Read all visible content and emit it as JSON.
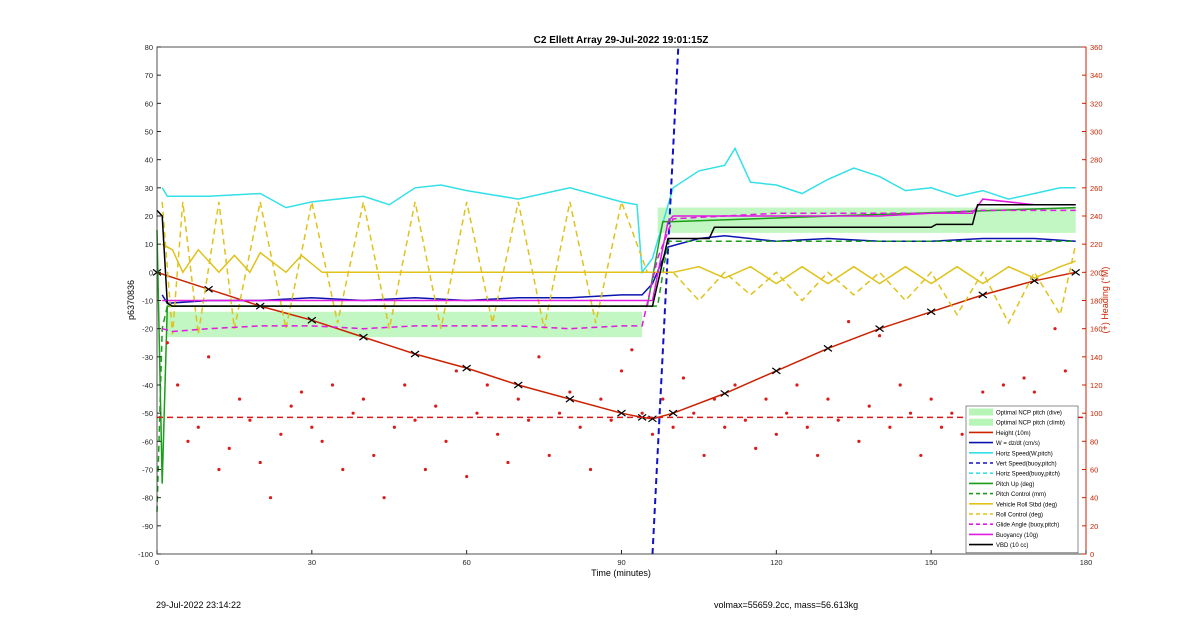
{
  "chart_data": {
    "type": "line",
    "title": "C2 Ellett Array 29-Jul-2022 19:01:15Z",
    "xlabel": "Time (minutes)",
    "ylabel_left": "p6370836",
    "ylabel_right": "(+) Heading (°M)",
    "xlim": [
      0,
      180
    ],
    "ylim_left": [
      -100,
      80
    ],
    "ylim_right": [
      0,
      360
    ],
    "x_ticks": [
      0,
      30,
      60,
      90,
      120,
      150,
      180
    ],
    "y_ticks_left": [
      -100,
      -90,
      -80,
      -70,
      -60,
      -50,
      -40,
      -30,
      -20,
      -10,
      0,
      10,
      20,
      30,
      40,
      50,
      60,
      70,
      80
    ],
    "y_ticks_right": [
      0,
      20,
      40,
      60,
      80,
      100,
      120,
      140,
      160,
      180,
      200,
      220,
      240,
      260,
      280,
      300,
      320,
      340,
      360
    ],
    "grid": false,
    "legend_position": "lower-right",
    "legend": [
      {
        "label": "Optimal NCP pitch (dive)",
        "color": "#b7f5b7",
        "style": "patch"
      },
      {
        "label": "Optimal NCP pitch (climb)",
        "color": "#b7f5b7",
        "style": "patch"
      },
      {
        "label": "Height (10m)",
        "color": "#cc2200",
        "style": "solid-marker"
      },
      {
        "label": "W = dz/dt (cm/s)",
        "color": "#0b14b0",
        "style": "solid"
      },
      {
        "label": "Horiz Speed(W,pitch)",
        "color": "#33e0e8",
        "style": "solid"
      },
      {
        "label": "Vert Speed(buoy,pitch)",
        "color": "#1010c8",
        "style": "dashed"
      },
      {
        "label": "Horiz Speed(buoy,pitch)",
        "color": "#33e0e8",
        "style": "dashed"
      },
      {
        "label": "Pitch Up (deg)",
        "color": "#1a9e1a",
        "style": "solid"
      },
      {
        "label": "Pitch Control (mm)",
        "color": "#1a9e1a",
        "style": "dashed"
      },
      {
        "label": "Vehicle Roll Stbd (deg)",
        "color": "#e0c21a",
        "style": "solid"
      },
      {
        "label": "Roll Control (deg)",
        "color": "#e0c21a",
        "style": "dashed"
      },
      {
        "label": "Glide Angle (buoy,pitch)",
        "color": "#e01ae0",
        "style": "dashed"
      },
      {
        "label": "Buoyancy (10g)",
        "color": "#e01ae0",
        "style": "solid"
      },
      {
        "label": "VBD (10 cc)",
        "color": "#000000",
        "style": "solid"
      }
    ],
    "series": [
      {
        "name": "Height (10m)",
        "axis": "left",
        "x": [
          0,
          10,
          20,
          30,
          40,
          50,
          60,
          70,
          80,
          90,
          94,
          96,
          100,
          110,
          120,
          130,
          140,
          150,
          160,
          170,
          178
        ],
        "y": [
          0,
          -6,
          -12,
          -17,
          -23,
          -29,
          -34,
          -40,
          -45,
          -50,
          -51.5,
          -52,
          -50,
          -43,
          -35,
          -27,
          -20,
          -14,
          -8,
          -3,
          0
        ]
      },
      {
        "name": "W = dz/dt (cm/s)",
        "axis": "left",
        "x": [
          1,
          2,
          10,
          20,
          30,
          40,
          50,
          60,
          70,
          80,
          90,
          94,
          96,
          99,
          105,
          110,
          120,
          130,
          140,
          150,
          160,
          170,
          178
        ],
        "y": [
          -8,
          -11,
          -10,
          -10,
          -9,
          -10,
          -9,
          -10,
          -9,
          -9,
          -8,
          -8,
          -4,
          9,
          12,
          13,
          11,
          12,
          11,
          11,
          12,
          12,
          11
        ]
      },
      {
        "name": "Horiz Speed(W,pitch)",
        "axis": "left",
        "x": [
          1,
          2,
          10,
          20,
          25,
          30,
          40,
          45,
          50,
          55,
          60,
          70,
          80,
          90,
          93,
          94,
          96,
          100,
          105,
          110,
          112,
          115,
          120,
          125,
          130,
          135,
          140,
          145,
          150,
          155,
          160,
          165,
          170,
          175,
          178
        ],
        "y": [
          30,
          27,
          27,
          28,
          23,
          25,
          27,
          24,
          30,
          31,
          29,
          26,
          30,
          25,
          24,
          0,
          5,
          30,
          36,
          38,
          44,
          32,
          31,
          28,
          33,
          37,
          34,
          29,
          30,
          27,
          29,
          26,
          28,
          30,
          30
        ]
      },
      {
        "name": "Vert Speed(buoy,pitch)",
        "axis": "left",
        "x": [
          96,
          101
        ],
        "y": [
          -100,
          80
        ]
      },
      {
        "name": "Pitch Up (deg)",
        "axis": "left",
        "x": [
          0,
          1,
          2,
          3,
          95,
          97,
          98,
          100,
          178
        ],
        "y": [
          15,
          -75,
          -12,
          -12,
          -12,
          8,
          18,
          18,
          23
        ]
      },
      {
        "name": "Pitch Control (mm)",
        "axis": "left",
        "x": [
          0,
          1,
          2,
          97,
          99,
          178
        ],
        "y": [
          -85,
          -20,
          -12,
          -12,
          11,
          11
        ]
      },
      {
        "name": "Vehicle Roll Stbd (deg)",
        "axis": "left",
        "x": [
          1,
          3,
          5,
          8,
          12,
          15,
          18,
          20,
          25,
          28,
          32,
          35,
          40,
          45,
          50,
          55,
          60,
          65,
          70,
          75,
          80,
          85,
          90,
          93,
          95,
          100,
          105,
          110,
          115,
          120,
          125,
          130,
          135,
          140,
          145,
          150,
          155,
          160,
          165,
          170,
          175,
          178
        ],
        "y": [
          10,
          8,
          0,
          8,
          0,
          6,
          0,
          7,
          0,
          6,
          0,
          0,
          0,
          0,
          0,
          0,
          0,
          0,
          0,
          0,
          0,
          0,
          0,
          0,
          0,
          0,
          2,
          -2,
          2,
          -4,
          2,
          -4,
          2,
          -4,
          2,
          -4,
          2,
          -4,
          2,
          -2,
          2,
          4
        ]
      },
      {
        "name": "Roll Control (deg)",
        "axis": "left",
        "x": [
          1,
          3,
          5,
          8,
          12,
          15,
          20,
          25,
          30,
          35,
          40,
          45,
          50,
          55,
          60,
          65,
          70,
          75,
          80,
          85,
          90,
          95,
          100,
          105,
          110,
          115,
          120,
          125,
          130,
          135,
          140,
          145,
          150,
          155,
          160,
          165,
          170,
          175,
          178
        ],
        "y": [
          25,
          -22,
          25,
          -22,
          25,
          -20,
          25,
          -20,
          25,
          -18,
          25,
          -20,
          25,
          -20,
          25,
          -18,
          25,
          -20,
          25,
          -18,
          25,
          0,
          0,
          -10,
          0,
          -8,
          0,
          -10,
          0,
          -8,
          0,
          -10,
          0,
          -15,
          0,
          -18,
          0,
          -15,
          10
        ]
      },
      {
        "name": "Glide Angle (buoy,pitch)",
        "axis": "left",
        "x": [
          1,
          3,
          10,
          20,
          30,
          40,
          50,
          60,
          70,
          80,
          90,
          94,
          97,
          100,
          110,
          120,
          130,
          140,
          150,
          160,
          170,
          178
        ],
        "y": [
          -20,
          -21,
          -20,
          -19,
          -19,
          -20,
          -19,
          -19,
          -19,
          -20,
          -19,
          -19,
          5,
          19,
          20,
          21,
          21,
          21,
          21,
          22,
          22,
          22
        ]
      },
      {
        "name": "Buoyancy (10g)",
        "axis": "left",
        "x": [
          1,
          3,
          94,
          96,
          99,
          100,
          110,
          120,
          130,
          140,
          150,
          158,
          160,
          170,
          178
        ],
        "y": [
          -10,
          -10,
          -10,
          -10,
          18,
          20,
          20,
          20,
          20,
          20,
          21,
          21,
          26,
          24,
          24
        ]
      },
      {
        "name": "VBD (10 cc)",
        "axis": "left",
        "x": [
          0,
          1,
          2,
          3,
          94,
          96,
          99,
          100,
          107,
          108,
          150,
          151,
          158,
          159,
          178
        ],
        "y": [
          22,
          20,
          -11,
          -12,
          -12,
          -12,
          12,
          12,
          12,
          16,
          16,
          17,
          17,
          24,
          24
        ]
      },
      {
        "name": "Heading",
        "axis": "right",
        "style": "dots",
        "x": [
          2,
          4,
          6,
          8,
          10,
          12,
          14,
          16,
          18,
          20,
          22,
          24,
          26,
          28,
          30,
          32,
          34,
          36,
          38,
          40,
          42,
          44,
          46,
          48,
          50,
          52,
          54,
          56,
          58,
          60,
          62,
          64,
          66,
          68,
          70,
          72,
          74,
          76,
          78,
          80,
          82,
          84,
          86,
          88,
          90,
          92,
          94,
          96,
          98,
          100,
          102,
          104,
          106,
          108,
          110,
          112,
          114,
          116,
          118,
          120,
          122,
          124,
          126,
          128,
          130,
          132,
          134,
          136,
          138,
          140,
          142,
          144,
          146,
          148,
          150,
          152,
          154,
          156,
          158,
          160,
          162,
          164,
          166,
          168,
          170,
          172,
          174,
          176,
          178
        ],
        "y": [
          150,
          120,
          80,
          90,
          140,
          60,
          75,
          110,
          95,
          65,
          40,
          85,
          105,
          115,
          90,
          80,
          120,
          60,
          100,
          110,
          70,
          40,
          90,
          120,
          95,
          60,
          105,
          80,
          130,
          55,
          100,
          120,
          85,
          65,
          110,
          95,
          140,
          70,
          100,
          115,
          90,
          60,
          110,
          95,
          130,
          145,
          100,
          85,
          110,
          90,
          125,
          100,
          70,
          110,
          90,
          120,
          95,
          75,
          110,
          85,
          100,
          120,
          90,
          70,
          110,
          95,
          165,
          80,
          105,
          155,
          90,
          120,
          100,
          70,
          110,
          90,
          100,
          85,
          70,
          115,
          95,
          120,
          100,
          125,
          115,
          95,
          160,
          130,
          85
        ]
      },
      {
        "name": "Heading target",
        "axis": "right",
        "style": "dashed",
        "x": [
          0,
          180
        ],
        "y": [
          97,
          97
        ]
      }
    ],
    "bands": [
      {
        "name": "Optimal NCP pitch (dive)",
        "x": [
          2,
          94
        ],
        "y_low": -23,
        "y_high": -14,
        "color": "#b7f5b7"
      },
      {
        "name": "Optimal NCP pitch (climb)",
        "x": [
          97,
          178
        ],
        "y_low": 14,
        "y_high": 23,
        "color": "#b7f5b7"
      }
    ]
  },
  "footer": {
    "left": "29-Jul-2022 23:14:22",
    "right": "volmax=55659.2cc, mass=56.613kg"
  }
}
